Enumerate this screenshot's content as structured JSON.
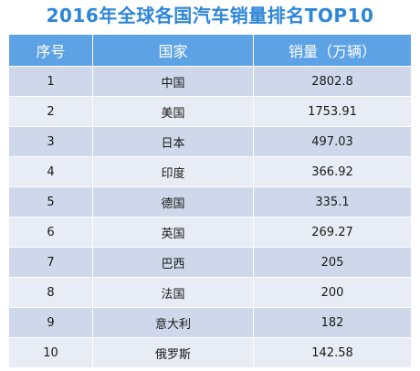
{
  "chart_data": {
    "type": "table",
    "title": "2016年全球各国汽车销量排名TOP10",
    "columns": [
      "序号",
      "国家",
      "销量（万辆）"
    ],
    "rows": [
      [
        "1",
        "中国",
        "2802.8"
      ],
      [
        "2",
        "美国",
        "1753.91"
      ],
      [
        "3",
        "日本",
        "497.03"
      ],
      [
        "4",
        "印度",
        "366.92"
      ],
      [
        "5",
        "德国",
        "335.1"
      ],
      [
        "6",
        "英国",
        "269.27"
      ],
      [
        "7",
        "巴西",
        "205"
      ],
      [
        "8",
        "法国",
        "200"
      ],
      [
        "9",
        "意大利",
        "182"
      ],
      [
        "10",
        "俄罗斯",
        "142.58"
      ]
    ],
    "colors": {
      "title": "#2e86d8",
      "header_bg": "#5da2e4",
      "row_dark": "#ced8ea",
      "row_light": "#e7ecf5"
    }
  }
}
